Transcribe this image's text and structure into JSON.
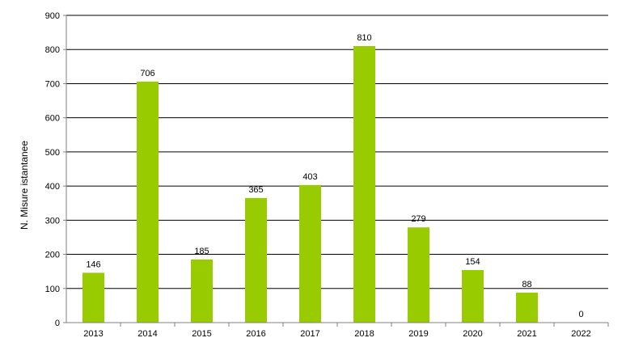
{
  "chart_data": {
    "type": "bar",
    "title": "",
    "xlabel": "",
    "ylabel": "N. Misure istantanee",
    "categories": [
      "2013",
      "2014",
      "2015",
      "2016",
      "2017",
      "2018",
      "2019",
      "2020",
      "2021",
      "2022"
    ],
    "values": [
      146,
      706,
      185,
      365,
      403,
      810,
      279,
      154,
      88,
      0
    ],
    "ylim": [
      0,
      900
    ],
    "yticks": [
      0,
      100,
      200,
      300,
      400,
      500,
      600,
      700,
      800,
      900
    ],
    "grid": true,
    "legend": "none",
    "colors": {
      "bar": "#99cc00",
      "grid": "#000000",
      "axis": "#808080"
    }
  }
}
